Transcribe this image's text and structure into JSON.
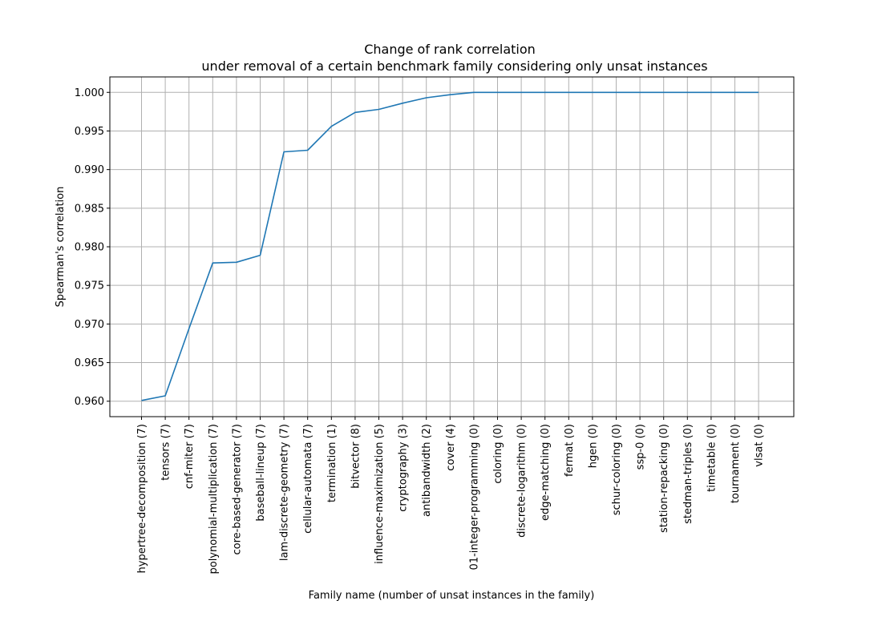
{
  "chart_data": {
    "type": "line",
    "title_lines": [
      "Change of rank correlation",
      "under removal of a certain benchmark family considering only unsat instances"
    ],
    "xlabel": "Family name (number of unsat instances in the family)",
    "ylabel": "Spearman's correlation",
    "ylim": [
      0.958,
      1.002
    ],
    "yticks": [
      0.96,
      0.965,
      0.97,
      0.975,
      0.98,
      0.985,
      0.99,
      0.995,
      1.0
    ],
    "ytick_labels": [
      "0.960",
      "0.965",
      "0.970",
      "0.975",
      "0.980",
      "0.985",
      "0.990",
      "0.995",
      "1.000"
    ],
    "grid": true,
    "line_color": "#1f77b4",
    "categories": [
      "hypertree-decomposition (7)",
      "tensors (7)",
      "cnf-miter (7)",
      "polynomial-multiplication (7)",
      "core-based-generator (7)",
      "baseball-lineup (7)",
      "lam-discrete-geometry (7)",
      "cellular-automata (7)",
      "termination (1)",
      "bitvector (8)",
      "influence-maximization (5)",
      "cryptography (3)",
      "antibandwidth (2)",
      "cover (4)",
      "01-integer-programming (0)",
      "coloring (0)",
      "discrete-logarithm (0)",
      "edge-matching (0)",
      "fermat (0)",
      "hgen (0)",
      "schur-coloring (0)",
      "ssp-0 (0)",
      "station-repacking (0)",
      "stedman-triples (0)",
      "timetable (0)",
      "tournament (0)",
      "vlsat (0)"
    ],
    "values": [
      0.9601,
      0.9607,
      0.9694,
      0.9779,
      0.978,
      0.9789,
      0.9923,
      0.9925,
      0.9956,
      0.9974,
      0.9978,
      0.9986,
      0.9993,
      0.9997,
      1.0,
      1.0,
      1.0,
      1.0,
      1.0,
      1.0,
      1.0,
      1.0,
      1.0,
      1.0,
      1.0,
      1.0,
      1.0
    ]
  }
}
